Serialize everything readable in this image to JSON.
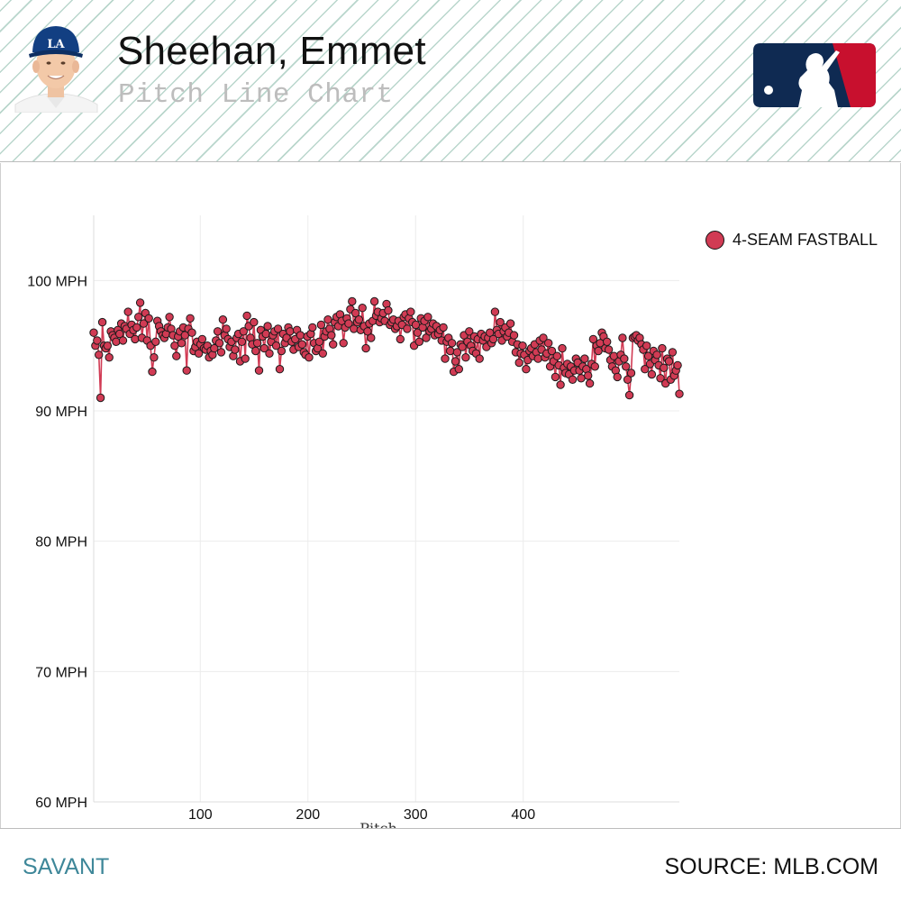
{
  "header": {
    "player_name": "Sheehan, Emmet",
    "chart_kind": "Pitch Line Chart"
  },
  "footer": {
    "left": "SAVANT",
    "right": "SOURCE: MLB.COM"
  },
  "colors": {
    "series": "#d13b54",
    "grid": "#ececec",
    "text": "#111111",
    "savant": "#3e8799",
    "mlb_blue": "#0f2a52",
    "mlb_red": "#c8102e",
    "dodgers_blue": "#123f82"
  },
  "chart_data": {
    "type": "line",
    "title": "Pitch Line Chart",
    "xlabel": "Pitch",
    "ylabel": "",
    "xlim": [
      1,
      545
    ],
    "ylim": [
      60,
      105
    ],
    "xticks": [
      100,
      200,
      300,
      400
    ],
    "yticks": [
      {
        "value": 60,
        "label": "60 MPH"
      },
      {
        "value": 70,
        "label": "70 MPH"
      },
      {
        "value": 80,
        "label": "80 MPH"
      },
      {
        "value": 90,
        "label": "90 MPH"
      },
      {
        "value": 100,
        "label": "100 MPH"
      }
    ],
    "grid": true,
    "legend_position": "top-right",
    "series": [
      {
        "name": "4-SEAM FASTBALL",
        "color": "#d13b54",
        "values": [
          96.0,
          95.0,
          95.4,
          94.3,
          91.0,
          96.8,
          95.0,
          94.8,
          95.0,
          94.1,
          96.1,
          95.8,
          95.6,
          95.3,
          96.2,
          95.9,
          96.7,
          95.4,
          96.5,
          96.3,
          97.6,
          95.9,
          96.6,
          96.2,
          95.5,
          96.4,
          97.2,
          98.3,
          95.6,
          96.7,
          97.5,
          95.4,
          97.1,
          95.0,
          93.0,
          94.1,
          95.3,
          96.9,
          96.5,
          96.1,
          95.8,
          95.6,
          95.9,
          96.4,
          97.2,
          96.3,
          95.8,
          95.0,
          94.2,
          95.7,
          96.1,
          95.2,
          96.4,
          95.8,
          93.1,
          96.3,
          97.1,
          96.0,
          94.6,
          94.9,
          95.3,
          94.4,
          95.1,
          95.5,
          94.8,
          94.7,
          95.0,
          94.1,
          94.6,
          94.3,
          94.8,
          95.4,
          96.1,
          95.2,
          94.5,
          97.0,
          95.8,
          96.3,
          95.5,
          94.9,
          95.3,
          94.2,
          94.7,
          95.6,
          95.9,
          93.8,
          95.3,
          96.1,
          94.0,
          97.3,
          96.5,
          95.6,
          95.1,
          96.8,
          94.6,
          95.2,
          93.1,
          96.2,
          95.7,
          94.8,
          95.9,
          96.5,
          94.4,
          95.3,
          95.8,
          96.1,
          95.0,
          96.3,
          93.2,
          94.6,
          95.9,
          95.2,
          95.6,
          96.4,
          96.1,
          95.3,
          94.7,
          95.5,
          96.2,
          94.9,
          95.8,
          95.1,
          94.5,
          94.3,
          95.7,
          94.1,
          95.9,
          96.4,
          95.2,
          94.6,
          94.8,
          95.3,
          96.6,
          94.4,
          95.7,
          96.1,
          97.0,
          96.3,
          95.8,
          95.1,
          96.8,
          97.2,
          96.5,
          97.4,
          96.9,
          95.2,
          96.4,
          97.1,
          96.7,
          97.8,
          98.4,
          96.3,
          97.5,
          96.8,
          97.0,
          96.2,
          97.9,
          96.5,
          94.8,
          96.1,
          96.7,
          95.6,
          96.9,
          98.4,
          97.3,
          97.6,
          96.8,
          97.1,
          97.5,
          96.9,
          98.2,
          97.7,
          96.6,
          96.8,
          97.0,
          96.3,
          96.5,
          96.9,
          95.5,
          96.6,
          97.2,
          97.4,
          96.3,
          97.1,
          97.6,
          96.8,
          95.0,
          96.6,
          96.0,
          95.3,
          97.1,
          96.4,
          96.9,
          95.6,
          97.2,
          96.1,
          96.3,
          96.7,
          95.8,
          96.5,
          95.9,
          96.2,
          95.4,
          96.4,
          94.0,
          95.3,
          95.6,
          94.6,
          95.2,
          93.0,
          93.8,
          94.5,
          93.2,
          95.1,
          94.9,
          95.8,
          94.1,
          95.3,
          96.1,
          95.0,
          94.6,
          95.7,
          94.4,
          95.5,
          94.0,
          95.9,
          95.4,
          95.7,
          94.9,
          95.6,
          96.0,
          95.2,
          95.5,
          97.6,
          96.2,
          95.9,
          96.8,
          95.4,
          96.1,
          96.4,
          95.7,
          96.0,
          96.7,
          95.3,
          95.8,
          94.5,
          95.1,
          93.7,
          94.4,
          95.0,
          94.3,
          93.2,
          93.9,
          94.6,
          94.8,
          94.2,
          95.1,
          94.5,
          94.0,
          95.4,
          94.7,
          95.6,
          94.1,
          94.4,
          95.2,
          93.4,
          94.6,
          93.8,
          92.6,
          94.2,
          93.5,
          92.0,
          94.8,
          93.3,
          92.9,
          93.6,
          92.8,
          93.4,
          92.4,
          93.1,
          94.0,
          93.7,
          93.1,
          92.5,
          93.4,
          94.0,
          93.2,
          92.7,
          92.1,
          93.6,
          95.5,
          93.4,
          95.0,
          94.6,
          95.2,
          96.0,
          95.7,
          94.8,
          95.3,
          94.7,
          93.9,
          93.4,
          94.2,
          93.1,
          92.6,
          93.8,
          94.3,
          95.6,
          94.0,
          93.4,
          92.4,
          91.2,
          92.9,
          95.6,
          95.7,
          95.8,
          95.4,
          95.6,
          95.1,
          94.7,
          93.2,
          95.0,
          94.2,
          93.6,
          92.8,
          94.6,
          93.9,
          94.3,
          93.5,
          92.5,
          94.8,
          93.3,
          92.1,
          94.0,
          93.8,
          92.4,
          94.5,
          92.7,
          93.1,
          93.5,
          91.3
        ]
      }
    ]
  }
}
